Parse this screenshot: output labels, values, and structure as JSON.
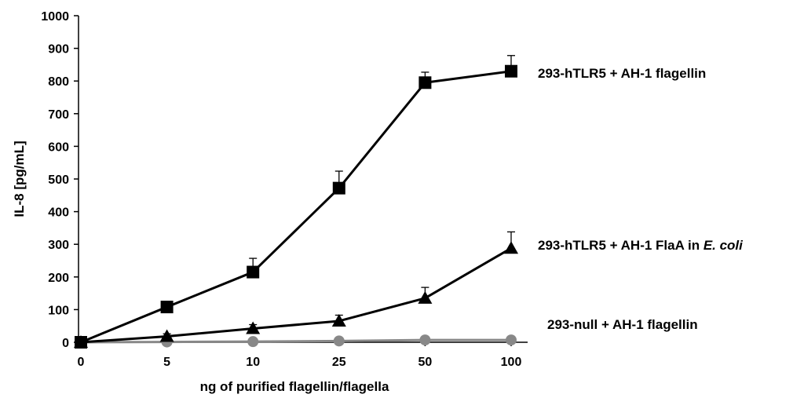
{
  "chart_data": {
    "type": "line",
    "categories": [
      "0",
      "5",
      "10",
      "25",
      "50",
      "100"
    ],
    "xlabel": "ng of purified flagellin/flagella",
    "ylabel": "IL-8 [pg/mL]",
    "ylim": [
      0,
      1000
    ],
    "yticks": [
      0,
      100,
      200,
      300,
      400,
      500,
      600,
      700,
      800,
      900,
      1000
    ],
    "grid": false,
    "series": [
      {
        "name": "293-hTLR5 + AH-1 flagellin",
        "label_parts": [
          "293-hTLR5 + AH-1 flagellin"
        ],
        "marker": "square",
        "color": "#000000",
        "values": [
          0,
          108,
          215,
          472,
          795,
          830
        ],
        "errors": [
          0,
          12,
          42,
          52,
          32,
          48
        ]
      },
      {
        "name": "293-hTLR5 + AH-1 FlaA in E. coli",
        "label_parts": [
          "293-hTLR5 + AH-1 FlaA in ",
          "E. coli"
        ],
        "marker": "triangle",
        "color": "#000000",
        "values": [
          0,
          18,
          42,
          65,
          135,
          288
        ],
        "errors": [
          0,
          8,
          12,
          18,
          33,
          50
        ]
      },
      {
        "name": "293-null + AH-1 flagellin",
        "label_parts": [
          "293-null + AH-1  flagellin"
        ],
        "marker": "circle",
        "color": "#888888",
        "values": [
          0,
          1,
          2,
          4,
          7,
          7
        ],
        "errors": [
          0,
          0,
          0,
          0,
          0,
          0
        ]
      }
    ]
  }
}
